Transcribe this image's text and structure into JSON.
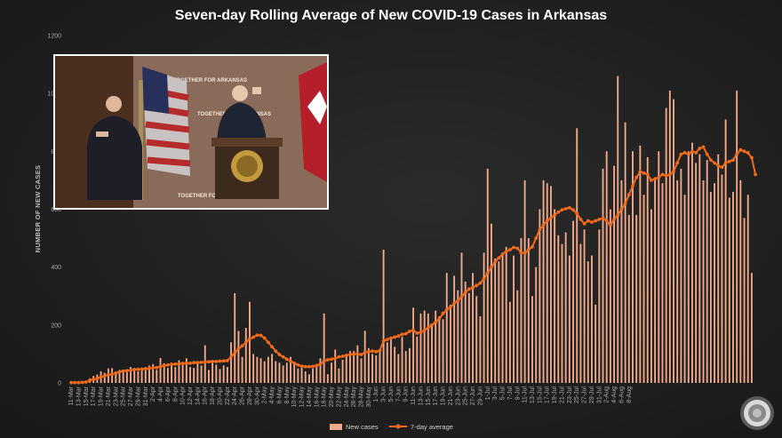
{
  "colors": {
    "bar": "#f2a98a",
    "line": "#f26a1b",
    "text": "#a8a8a8",
    "title": "#ffffff"
  },
  "inset_video": {
    "content": "press-briefing-video",
    "banner_text": "TOGETHER FOR ARKANSAS"
  },
  "seal_icon": "state-seal-icon",
  "chart_data": {
    "type": "bar",
    "title": "Seven-day Rolling Average of New COVID-19 Cases in Arkansas",
    "ylabel": "NUMBER OF NEW CASES",
    "xlabel": "",
    "ylim": [
      0,
      1200
    ],
    "yticks": [
      0,
      200,
      400,
      600,
      800,
      1000,
      1200
    ],
    "grid": false,
    "legend_position": "bottom-center",
    "start_date": "2020-03-11",
    "tick_labels": [
      "11-Mar",
      "13-Mar",
      "15-Mar",
      "17-Mar",
      "19-Mar",
      "21-Mar",
      "23-Mar",
      "25-Mar",
      "27-Mar",
      "29-Mar",
      "31-Mar",
      "2-Apr",
      "4-Apr",
      "6-Apr",
      "8-Apr",
      "10-Apr",
      "12-Apr",
      "14-Apr",
      "16-Apr",
      "18-Apr",
      "20-Apr",
      "22-Apr",
      "24-Apr",
      "26-Apr",
      "28-Apr",
      "30-Apr",
      "2-May",
      "4-May",
      "6-May",
      "8-May",
      "10-May",
      "12-May",
      "14-May",
      "16-May",
      "18-May",
      "20-May",
      "22-May",
      "24-May",
      "26-May",
      "28-May",
      "30-May",
      "1-Jun",
      "3-Jun",
      "5-Jun",
      "7-Jun",
      "9-Jun",
      "11-Jun",
      "13-Jun",
      "15-Jun",
      "17-Jun",
      "19-Jun",
      "21-Jun",
      "23-Jun",
      "25-Jun",
      "27-Jun",
      "29-Jun",
      "1-Jul",
      "3-Jul",
      "5-Jul",
      "7-Jul",
      "9-Jul",
      "11-Jul",
      "13-Jul",
      "15-Jul",
      "17-Jul",
      "19-Jul",
      "21-Jul",
      "23-Jul",
      "25-Jul",
      "27-Jul",
      "29-Jul",
      "31-Jul",
      "2-Aug",
      "4-Aug",
      "6-Aug",
      "8-Aug"
    ],
    "series": [
      {
        "name": "New cases",
        "type": "bar",
        "values": [
          1,
          1,
          1,
          3,
          2,
          16,
          24,
          29,
          40,
          35,
          50,
          51,
          40,
          45,
          40,
          42,
          55,
          52,
          40,
          42,
          55,
          60,
          65,
          45,
          86,
          68,
          52,
          70,
          55,
          78,
          62,
          85,
          55,
          52,
          65,
          60,
          130,
          45,
          75,
          63,
          48,
          60,
          55,
          140,
          310,
          180,
          90,
          190,
          280,
          100,
          90,
          85,
          75,
          90,
          100,
          75,
          70,
          60,
          70,
          90,
          65,
          50,
          55,
          40,
          30,
          50,
          60,
          85,
          240,
          30,
          70,
          115,
          50,
          80,
          100,
          110,
          110,
          130,
          85,
          180,
          120,
          100,
          95,
          110,
          460,
          140,
          155,
          125,
          100,
          160,
          110,
          120,
          260,
          160,
          240,
          250,
          240,
          200,
          250,
          230,
          220,
          380,
          270,
          370,
          320,
          450,
          350,
          310,
          380,
          300,
          230,
          450,
          740,
          550,
          430,
          420,
          440,
          470,
          280,
          440,
          320,
          500,
          700,
          500,
          300,
          400,
          600,
          700,
          690,
          680,
          600,
          510,
          480,
          520,
          440,
          560,
          880,
          480,
          530,
          420,
          440,
          270,
          530,
          740,
          800,
          600,
          750,
          1060,
          700,
          900,
          580,
          800,
          580,
          820,
          650,
          780,
          600,
          700,
          800,
          690,
          950,
          1010,
          980,
          700,
          740,
          650,
          800,
          830,
          760,
          790,
          700,
          770,
          660,
          690,
          790,
          720,
          910,
          640,
          660,
          1010,
          700,
          570,
          650,
          380
        ],
        "tick_label_of_last": "8-Aug"
      },
      {
        "name": "7-day average",
        "type": "line",
        "values": [
          1,
          1,
          1,
          2,
          3,
          9,
          12,
          16,
          20,
          24,
          28,
          30,
          33,
          38,
          41,
          42,
          44,
          46,
          47,
          48,
          48,
          50,
          52,
          53,
          56,
          60,
          62,
          64,
          65,
          66,
          67,
          68,
          68,
          70,
          70,
          71,
          72,
          73,
          74,
          74,
          75,
          76,
          77,
          90,
          104,
          118,
          128,
          140,
          152,
          158,
          165,
          164,
          155,
          140,
          125,
          110,
          98,
          90,
          82,
          75,
          68,
          62,
          58,
          56,
          56,
          57,
          60,
          65,
          75,
          80,
          82,
          85,
          90,
          92,
          95,
          98,
          100,
          100,
          98,
          105,
          108,
          110,
          108,
          112,
          145,
          150,
          155,
          158,
          162,
          168,
          170,
          178,
          182,
          172,
          175,
          182,
          190,
          200,
          210,
          222,
          240,
          252,
          262,
          275,
          285,
          298,
          312,
          324,
          330,
          336,
          345,
          360,
          380,
          400,
          418,
          432,
          445,
          455,
          460,
          468,
          465,
          450,
          448,
          460,
          470,
          500,
          530,
          545,
          560,
          570,
          580,
          590,
          598,
          602,
          605,
          598,
          585,
          565,
          550,
          560,
          555,
          560,
          565,
          570,
          560,
          545,
          565,
          580,
          600,
          620,
          650,
          680,
          710,
          730,
          725,
          720,
          700,
          705,
          710,
          720,
          715,
          720,
          730,
          760,
          790,
          795,
          790,
          800,
          795,
          810,
          815,
          790,
          770,
          760,
          750,
          745,
          760,
          765,
          770,
          790,
          805,
          800,
          795,
          778,
          720
        ]
      }
    ]
  }
}
